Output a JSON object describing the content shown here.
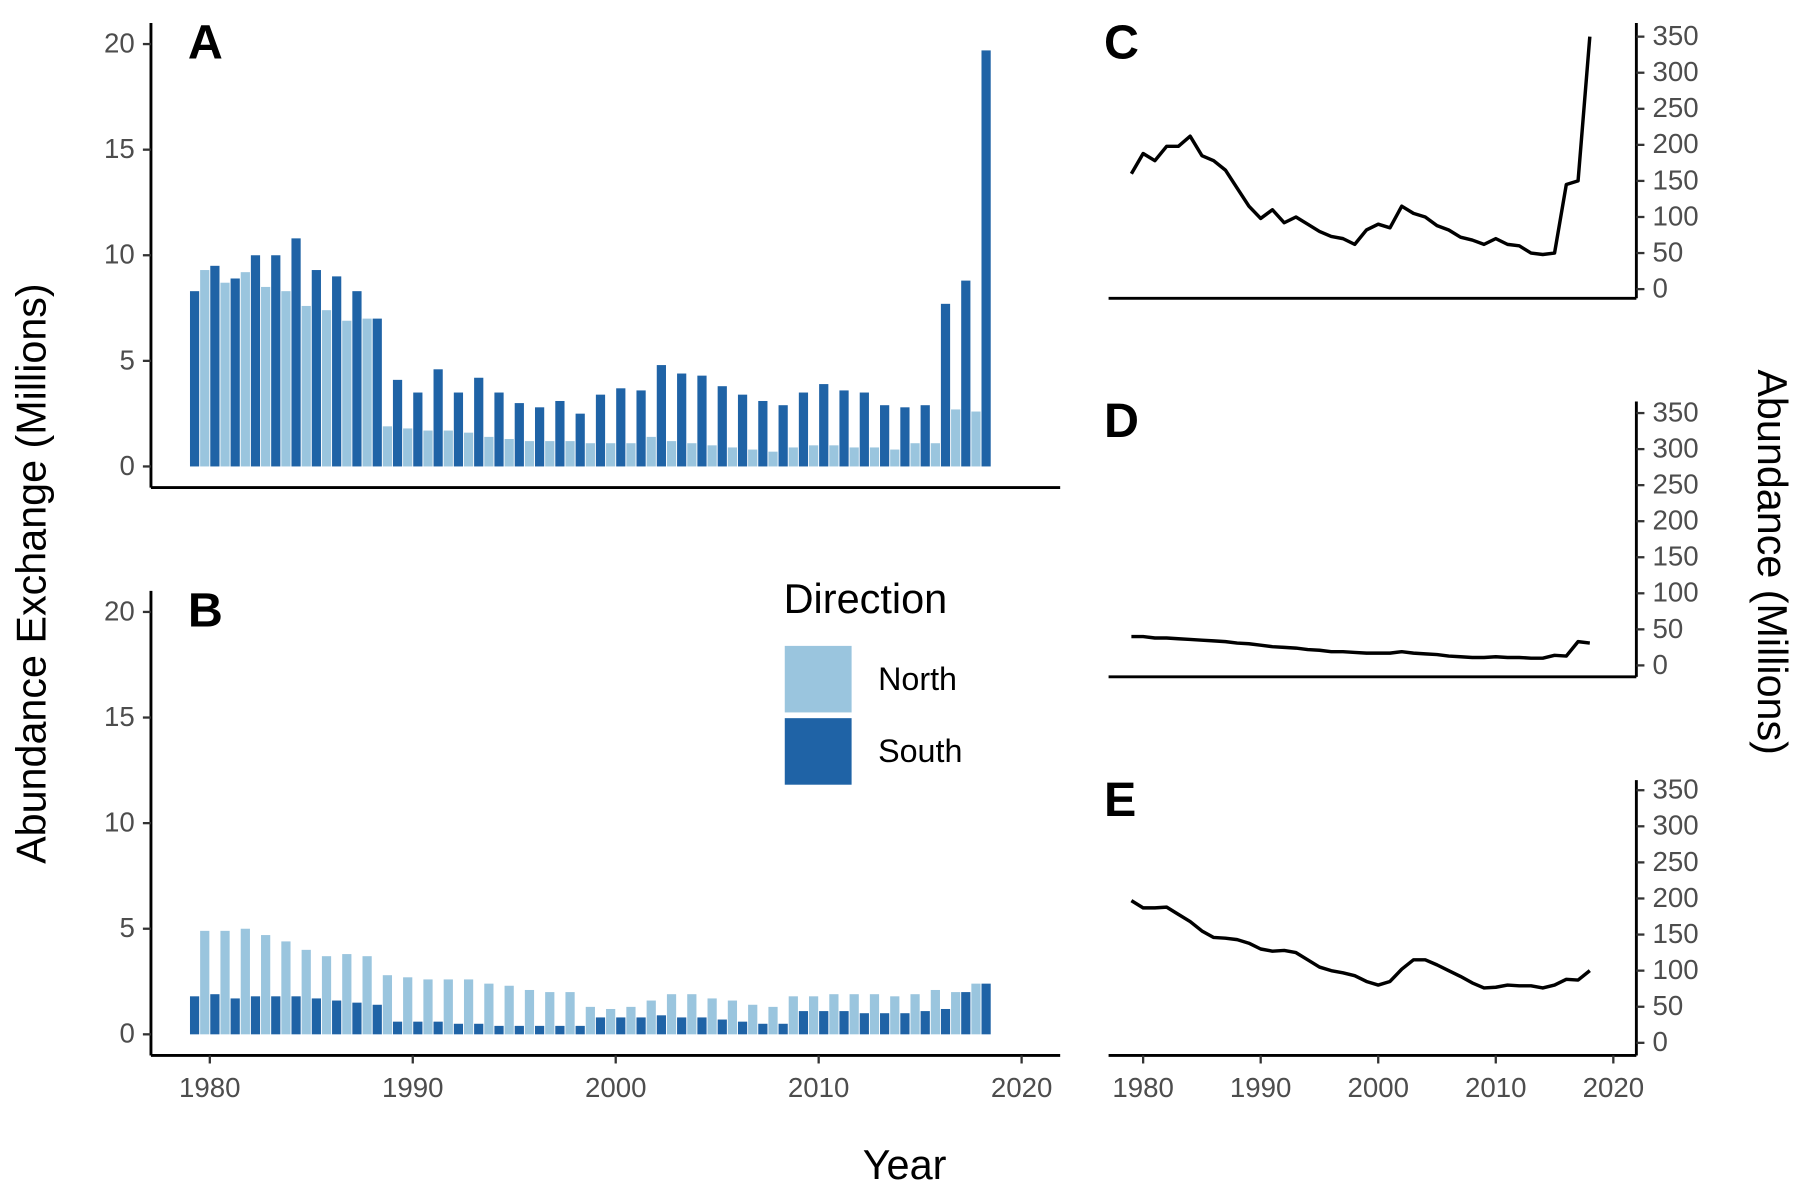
{
  "figure": {
    "x_label": "Year",
    "y_label": "Abundance Exchange (Millions)",
    "y2_label": "Abundance (Millions)"
  },
  "chart_data": [
    {
      "type": "bar",
      "panel": "A",
      "x": [
        1979,
        1980,
        1981,
        1982,
        1983,
        1984,
        1985,
        1986,
        1987,
        1988,
        1989,
        1990,
        1991,
        1992,
        1993,
        1994,
        1995,
        1996,
        1997,
        1998,
        1999,
        2000,
        2001,
        2002,
        2003,
        2004,
        2005,
        2006,
        2007,
        2008,
        2009,
        2010,
        2011,
        2012,
        2013,
        2014,
        2015,
        2016,
        2017,
        2018
      ],
      "series": [
        {
          "color": "#9ac5de",
          "values": [
            null,
            9.3,
            8.7,
            9.2,
            8.5,
            8.3,
            7.6,
            7.4,
            6.9,
            7.0,
            1.9,
            1.8,
            1.7,
            1.7,
            1.6,
            1.4,
            1.3,
            1.2,
            1.2,
            1.2,
            1.1,
            1.1,
            1.1,
            1.4,
            1.2,
            1.1,
            1.0,
            0.9,
            0.8,
            0.7,
            0.9,
            1.0,
            1.0,
            0.9,
            0.9,
            0.8,
            1.1,
            1.1,
            2.7,
            2.6
          ]
        },
        {
          "color": "#1f63a6",
          "values": [
            8.3,
            9.5,
            8.9,
            10.0,
            10.0,
            10.8,
            9.3,
            9.0,
            8.3,
            7.0,
            4.1,
            3.5,
            4.6,
            3.5,
            4.2,
            3.5,
            3.0,
            2.8,
            3.1,
            2.5,
            3.4,
            3.7,
            3.6,
            4.8,
            4.4,
            4.3,
            3.8,
            3.4,
            3.1,
            2.9,
            3.5,
            3.9,
            3.6,
            3.5,
            2.9,
            2.8,
            2.9,
            7.7,
            8.8,
            19.7
          ]
        }
      ],
      "xlim": [
        1977.1,
        2021.9
      ],
      "ylim": [
        -1,
        21
      ],
      "yticks": [
        0,
        5,
        10,
        15,
        20
      ]
    },
    {
      "type": "bar",
      "panel": "B",
      "x": [
        1979,
        1980,
        1981,
        1982,
        1983,
        1984,
        1985,
        1986,
        1987,
        1988,
        1989,
        1990,
        1991,
        1992,
        1993,
        1994,
        1995,
        1996,
        1997,
        1998,
        1999,
        2000,
        2001,
        2002,
        2003,
        2004,
        2005,
        2006,
        2007,
        2008,
        2009,
        2010,
        2011,
        2012,
        2013,
        2014,
        2015,
        2016,
        2017,
        2018
      ],
      "series": [
        {
          "name": "North",
          "color": "#9ac5de",
          "values": [
            null,
            4.9,
            4.9,
            5.0,
            4.7,
            4.4,
            4.0,
            3.7,
            3.8,
            3.7,
            2.8,
            2.7,
            2.6,
            2.6,
            2.6,
            2.4,
            2.3,
            2.1,
            2.0,
            2.0,
            1.3,
            1.2,
            1.3,
            1.6,
            1.9,
            1.9,
            1.7,
            1.6,
            1.4,
            1.3,
            1.8,
            1.8,
            1.9,
            1.9,
            1.9,
            1.8,
            1.9,
            2.1,
            2.0,
            2.4
          ]
        },
        {
          "name": "South",
          "color": "#1f63a6",
          "values": [
            1.8,
            1.9,
            1.7,
            1.8,
            1.8,
            1.8,
            1.7,
            1.6,
            1.5,
            1.4,
            0.6,
            0.6,
            0.6,
            0.5,
            0.5,
            0.4,
            0.4,
            0.4,
            0.4,
            0.4,
            0.8,
            0.8,
            0.8,
            0.9,
            0.8,
            0.8,
            0.7,
            0.6,
            0.5,
            0.5,
            1.1,
            1.1,
            1.1,
            1.0,
            1.0,
            1.0,
            1.1,
            1.2,
            2.0,
            2.4
          ]
        }
      ],
      "legend_title": "Direction",
      "xlim": [
        1977.1,
        2021.9
      ],
      "xticks": [
        1980,
        1990,
        2000,
        2010,
        2020
      ],
      "ylim": [
        -1,
        21
      ],
      "yticks": [
        0,
        5,
        10,
        15,
        20
      ]
    },
    {
      "type": "line",
      "panel": "C",
      "color": "#000000",
      "x": [
        1979,
        1980,
        1981,
        1982,
        1983,
        1984,
        1985,
        1986,
        1987,
        1988,
        1989,
        1990,
        1991,
        1992,
        1993,
        1994,
        1995,
        1996,
        1997,
        1998,
        1999,
        2000,
        2001,
        2002,
        2003,
        2004,
        2005,
        2006,
        2007,
        2008,
        2009,
        2010,
        2011,
        2012,
        2013,
        2014,
        2015,
        2016,
        2017,
        2018
      ],
      "values": [
        160,
        188,
        178,
        198,
        198,
        212,
        185,
        178,
        165,
        140,
        115,
        98,
        110,
        92,
        100,
        90,
        80,
        73,
        70,
        62,
        82,
        90,
        85,
        115,
        105,
        100,
        88,
        82,
        72,
        68,
        62,
        70,
        62,
        60,
        50,
        48,
        50,
        145,
        150,
        350
      ],
      "xlim": [
        1977.06,
        2021.96
      ],
      "ylim": [
        -12.7,
        369
      ],
      "yticks": [
        0,
        50,
        100,
        150,
        200,
        250,
        300,
        350
      ]
    },
    {
      "type": "line",
      "panel": "D",
      "color": "#000000",
      "x": [
        1979,
        1980,
        1981,
        1982,
        1983,
        1984,
        1985,
        1986,
        1987,
        1988,
        1989,
        1990,
        1991,
        1992,
        1993,
        1994,
        1995,
        1996,
        1997,
        1998,
        1999,
        2000,
        2001,
        2002,
        2003,
        2004,
        2005,
        2006,
        2007,
        2008,
        2009,
        2010,
        2011,
        2012,
        2013,
        2014,
        2015,
        2016,
        2017,
        2018
      ],
      "values": [
        40,
        40,
        38,
        38,
        37,
        36,
        35,
        34,
        33,
        31,
        30,
        28,
        26,
        25,
        24,
        22,
        21,
        19,
        19,
        18,
        17,
        17,
        17,
        19,
        17,
        16,
        15,
        13,
        12,
        11,
        11,
        12,
        11,
        11,
        10,
        10,
        14,
        13,
        33,
        31
      ],
      "xlim": [
        1977.06,
        2021.96
      ],
      "ylim": [
        -15.9,
        366
      ],
      "yticks": [
        0,
        50,
        100,
        150,
        200,
        250,
        300,
        350
      ]
    },
    {
      "type": "line",
      "panel": "E",
      "color": "#000000",
      "x": [
        1979,
        1980,
        1981,
        1982,
        1983,
        1984,
        1985,
        1986,
        1987,
        1988,
        1989,
        1990,
        1991,
        1992,
        1993,
        1994,
        1995,
        1996,
        1997,
        1998,
        1999,
        2000,
        2001,
        2002,
        2003,
        2004,
        2005,
        2006,
        2007,
        2008,
        2009,
        2010,
        2011,
        2012,
        2013,
        2014,
        2015,
        2016,
        2017,
        2018
      ],
      "values": [
        197,
        187,
        187,
        188,
        178,
        168,
        155,
        146,
        145,
        143,
        138,
        130,
        127,
        128,
        125,
        115,
        105,
        100,
        97,
        93,
        85,
        80,
        85,
        102,
        115,
        115,
        108,
        100,
        92,
        83,
        76,
        77,
        80,
        79,
        79,
        76,
        80,
        88,
        87,
        100
      ],
      "xlim": [
        1977.06,
        2021.96
      ],
      "xticks": [
        1980,
        1990,
        2000,
        2010,
        2020
      ],
      "ylim": [
        -17.5,
        364
      ],
      "yticks": [
        0,
        50,
        100,
        150,
        200,
        250,
        300,
        350
      ]
    }
  ]
}
